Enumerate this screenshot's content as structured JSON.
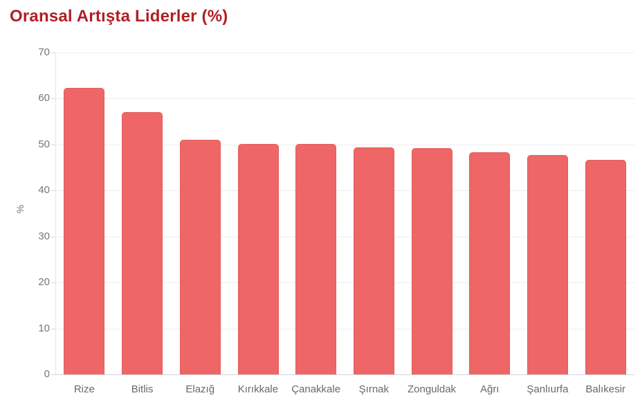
{
  "page": {
    "title": "Oransal Artışta Liderler (%)"
  },
  "colors": {
    "title_text": "#b01f24",
    "bar_fill": "#ee6666",
    "bar_border": "#e25d5d",
    "gridline": "#ededf0",
    "axis_line": "#d4d6da",
    "axis_label": "#73767d"
  },
  "chart_data": {
    "type": "bar",
    "title": "Oransal Artışta Liderler (%)",
    "categories": [
      "Rize",
      "Bitlis",
      "Elazığ",
      "Kırıkkale",
      "Çanakkale",
      "Şırnak",
      "Zonguldak",
      "Ağrı",
      "Şanlıurfa",
      "Balıkesir"
    ],
    "values": [
      62.3,
      57.1,
      51.0,
      50.2,
      50.2,
      49.4,
      49.3,
      48.4,
      47.7,
      46.7
    ],
    "xlabel": "",
    "ylabel": "%",
    "ylim": [
      0,
      70
    ],
    "yticks": [
      0,
      10,
      20,
      30,
      40,
      50,
      60,
      70
    ],
    "grid": true,
    "legend_position": "none",
    "bar_color": "#ee6666"
  }
}
